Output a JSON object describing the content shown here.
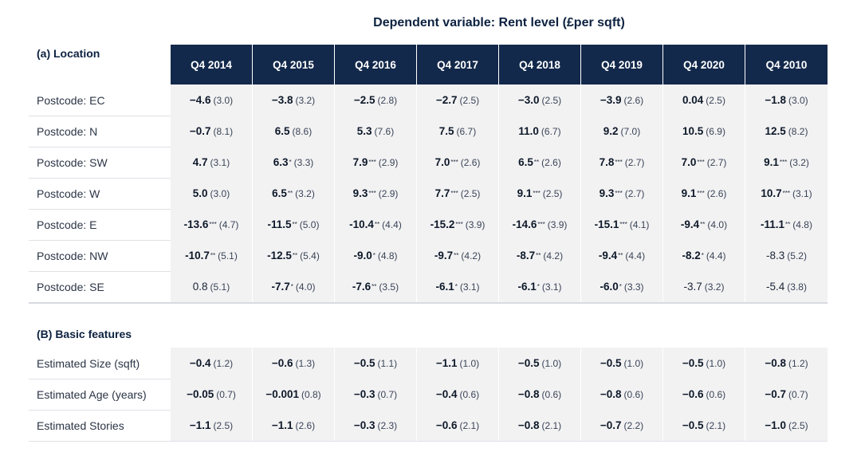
{
  "title": "Dependent variable: Rent level (£per sqft)",
  "section_a": "(a) Location",
  "section_b": "(B) Basic features",
  "columns": [
    "Q4 2014",
    "Q4 2015",
    "Q4 2016",
    "Q4 2017",
    "Q4 2018",
    "Q4 2019",
    "Q4 2020",
    "Q4 2010"
  ],
  "location_rows": [
    {
      "label": "Postcode: EC",
      "cells": [
        {
          "est": "−4.6",
          "sig": "",
          "se": "(3.0)",
          "bold": true
        },
        {
          "est": "−3.8",
          "sig": "",
          "se": "(3.2)",
          "bold": true
        },
        {
          "est": "−2.5",
          "sig": "",
          "se": "(2.8)",
          "bold": true
        },
        {
          "est": "−2.7",
          "sig": "",
          "se": "(2.5)",
          "bold": true
        },
        {
          "est": "−3.0",
          "sig": "",
          "se": "(2.5)",
          "bold": true
        },
        {
          "est": "−3.9",
          "sig": "",
          "se": "(2.6)",
          "bold": true
        },
        {
          "est": "0.04",
          "sig": "",
          "se": "(2.5)",
          "bold": true
        },
        {
          "est": "−1.8",
          "sig": "",
          "se": "(3.0)",
          "bold": true
        }
      ]
    },
    {
      "label": "Postcode: N",
      "cells": [
        {
          "est": "−0.7",
          "sig": "",
          "se": "(8.1)",
          "bold": true
        },
        {
          "est": "6.5",
          "sig": "",
          "se": "(8.6)",
          "bold": true
        },
        {
          "est": "5.3",
          "sig": "",
          "se": "(7.6)",
          "bold": true
        },
        {
          "est": "7.5",
          "sig": "",
          "se": "(6.7)",
          "bold": true
        },
        {
          "est": "11.0",
          "sig": "",
          "se": "(6.7)",
          "bold": true
        },
        {
          "est": "9.2",
          "sig": "",
          "se": "(7.0)",
          "bold": true
        },
        {
          "est": "10.5",
          "sig": "",
          "se": "(6.9)",
          "bold": true
        },
        {
          "est": "12.5",
          "sig": "",
          "se": "(8.2)",
          "bold": true
        }
      ]
    },
    {
      "label": "Postcode: SW",
      "cells": [
        {
          "est": "4.7",
          "sig": "",
          "se": "(3.1)",
          "bold": true
        },
        {
          "est": "6.3",
          "sig": "*",
          "se": "(3.3)",
          "bold": true
        },
        {
          "est": "7.9",
          "sig": "***",
          "se": "(2.9)",
          "bold": true
        },
        {
          "est": "7.0",
          "sig": "***",
          "se": "(2.6)",
          "bold": true
        },
        {
          "est": "6.5",
          "sig": "**",
          "se": "(2.6)",
          "bold": true
        },
        {
          "est": "7.8",
          "sig": "***",
          "se": "(2.7)",
          "bold": true
        },
        {
          "est": "7.0",
          "sig": "***",
          "se": "(2.7)",
          "bold": true
        },
        {
          "est": "9.1",
          "sig": "***",
          "se": "(3.2)",
          "bold": true
        }
      ]
    },
    {
      "label": "Postcode: W",
      "cells": [
        {
          "est": "5.0",
          "sig": "",
          "se": "(3.0)",
          "bold": true
        },
        {
          "est": "6.5",
          "sig": "**",
          "se": "(3.2)",
          "bold": true
        },
        {
          "est": "9.3",
          "sig": "***",
          "se": "(2.9)",
          "bold": true
        },
        {
          "est": "7.7",
          "sig": "***",
          "se": "(2.5)",
          "bold": true
        },
        {
          "est": "9.1",
          "sig": "***",
          "se": "(2.5)",
          "bold": true
        },
        {
          "est": "9.3",
          "sig": "***",
          "se": "(2.7)",
          "bold": true
        },
        {
          "est": "9.1",
          "sig": "***",
          "se": "(2.6)",
          "bold": true
        },
        {
          "est": "10.7",
          "sig": "***",
          "se": "(3.1)",
          "bold": true
        }
      ]
    },
    {
      "label": "Postcode: E",
      "cells": [
        {
          "est": "-13.6",
          "sig": "***",
          "se": "(4.7)",
          "bold": true
        },
        {
          "est": "-11.5",
          "sig": "**",
          "se": "(5.0)",
          "bold": true
        },
        {
          "est": "-10.4",
          "sig": "**",
          "se": "(4.4)",
          "bold": true
        },
        {
          "est": "-15.2",
          "sig": "***",
          "se": "(3.9)",
          "bold": true
        },
        {
          "est": "-14.6",
          "sig": "***",
          "se": "(3.9)",
          "bold": true
        },
        {
          "est": "-15.1",
          "sig": "***",
          "se": "(4.1)",
          "bold": true
        },
        {
          "est": "-9.4",
          "sig": "**",
          "se": "(4.0)",
          "bold": true
        },
        {
          "est": "-11.1",
          "sig": "**",
          "se": "(4.8)",
          "bold": true
        }
      ]
    },
    {
      "label": "Postcode: NW",
      "cells": [
        {
          "est": "-10.7",
          "sig": "**",
          "se": "(5.1)",
          "bold": true
        },
        {
          "est": "-12.5",
          "sig": "**",
          "se": "(5.4)",
          "bold": true
        },
        {
          "est": "-9.0",
          "sig": "*",
          "se": "(4.8)",
          "bold": true
        },
        {
          "est": "-9.7",
          "sig": "**",
          "se": "(4.2)",
          "bold": true
        },
        {
          "est": "-8.7",
          "sig": "**",
          "se": "(4.2)",
          "bold": true
        },
        {
          "est": "-9.4",
          "sig": "**",
          "se": "(4.4)",
          "bold": true
        },
        {
          "est": "-8.2",
          "sig": "*",
          "se": "(4.4)",
          "bold": true
        },
        {
          "est": "-8.3",
          "sig": "",
          "se": "(5.2)",
          "bold": false
        }
      ]
    },
    {
      "label": "Postcode: SE",
      "cells": [
        {
          "est": "0.8",
          "sig": "",
          "se": "(5.1)",
          "bold": false
        },
        {
          "est": "-7.7",
          "sig": "*",
          "se": "(4.0)",
          "bold": true
        },
        {
          "est": "-7.6",
          "sig": "**",
          "se": "(3.5)",
          "bold": true
        },
        {
          "est": "-6.1",
          "sig": "*",
          "se": "(3.1)",
          "bold": true
        },
        {
          "est": "-6.1",
          "sig": "*",
          "se": "(3.1)",
          "bold": true
        },
        {
          "est": "-6.0",
          "sig": "*",
          "se": "(3.3)",
          "bold": true
        },
        {
          "est": "-3.7",
          "sig": "",
          "se": "(3.2)",
          "bold": false
        },
        {
          "est": "-5.4",
          "sig": "",
          "se": "(3.8)",
          "bold": false
        }
      ]
    }
  ],
  "feature_rows": [
    {
      "label": "Estimated Size (sqft)",
      "cells": [
        {
          "est": "−0.4",
          "sig": "",
          "se": "(1.2)",
          "bold": true
        },
        {
          "est": "−0.6",
          "sig": "",
          "se": "(1.3)",
          "bold": true
        },
        {
          "est": "−0.5",
          "sig": "",
          "se": "(1.1)",
          "bold": true
        },
        {
          "est": "−1.1",
          "sig": "",
          "se": "(1.0)",
          "bold": true
        },
        {
          "est": "−0.5",
          "sig": "",
          "se": "(1.0)",
          "bold": true
        },
        {
          "est": "−0.5",
          "sig": "",
          "se": "(1.0)",
          "bold": true
        },
        {
          "est": "−0.5",
          "sig": "",
          "se": "(1.0)",
          "bold": true
        },
        {
          "est": "−0.8",
          "sig": "",
          "se": "(1.2)",
          "bold": true
        }
      ]
    },
    {
      "label": "Estimated Age (years)",
      "cells": [
        {
          "est": "−0.05",
          "sig": "",
          "se": "(0.7)",
          "bold": true
        },
        {
          "est": "−0.001",
          "sig": "",
          "se": "(0.8)",
          "bold": true
        },
        {
          "est": "−0.3",
          "sig": "",
          "se": "(0.7)",
          "bold": true
        },
        {
          "est": "−0.4",
          "sig": "",
          "se": "(0.6)",
          "bold": true
        },
        {
          "est": "−0.8",
          "sig": "",
          "se": "(0.6)",
          "bold": true
        },
        {
          "est": "−0.8",
          "sig": "",
          "se": "(0.6)",
          "bold": true
        },
        {
          "est": "−0.6",
          "sig": "",
          "se": "(0.6)",
          "bold": true
        },
        {
          "est": "−0.7",
          "sig": "",
          "se": "(0.7)",
          "bold": true
        }
      ]
    },
    {
      "label": "Estimated Stories",
      "cells": [
        {
          "est": "−1.1",
          "sig": "",
          "se": "(2.5)",
          "bold": true
        },
        {
          "est": "−1.1",
          "sig": "",
          "se": "(2.6)",
          "bold": true
        },
        {
          "est": "−0.3",
          "sig": "",
          "se": "(2.3)",
          "bold": true
        },
        {
          "est": "−0.6",
          "sig": "",
          "se": "(2.1)",
          "bold": true
        },
        {
          "est": "−0.8",
          "sig": "",
          "se": "(2.1)",
          "bold": true
        },
        {
          "est": "−0.7",
          "sig": "",
          "se": "(2.2)",
          "bold": true
        },
        {
          "est": "−0.5",
          "sig": "",
          "se": "(2.1)",
          "bold": true
        },
        {
          "est": "−1.0",
          "sig": "",
          "se": "(2.5)",
          "bold": true
        }
      ]
    }
  ],
  "colors": {
    "header_bg": "#13294b",
    "shade": "#f2f2f3",
    "title": "#0d2240"
  }
}
